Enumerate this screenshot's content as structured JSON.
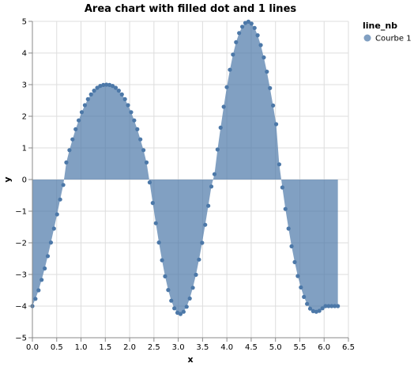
{
  "chart_data": {
    "type": "area",
    "title": "Area chart with filled dot and 1 lines",
    "xlabel": "x",
    "ylabel": "y",
    "xlim": [
      0,
      6.5
    ],
    "ylim": [
      -5,
      5
    ],
    "x_ticks": [
      0.0,
      0.5,
      1.0,
      1.5,
      2.0,
      2.5,
      3.0,
      3.5,
      4.0,
      4.5,
      5.0,
      5.5,
      6.0,
      6.5
    ],
    "x_tick_labels": [
      "0.0",
      "0.5",
      "1.0",
      "1.5",
      "2.0",
      "2.5",
      "3.0",
      "3.5",
      "4.0",
      "4.5",
      "5.0",
      "5.5",
      "6.0",
      "6.5"
    ],
    "y_ticks": [
      5,
      4,
      3,
      2,
      1,
      0,
      -1,
      -2,
      -3,
      -4,
      -5
    ],
    "y_tick_labels": [
      "5",
      "4",
      "3",
      "2",
      "1",
      "0",
      "−1",
      "−2",
      "−3",
      "−4",
      "−5"
    ],
    "grid": true,
    "legend": {
      "title": "line_nb",
      "position": "top-right",
      "items": [
        {
          "label": "Courbe 1",
          "color": "#4c78a8"
        }
      ]
    },
    "colors": {
      "series": "#4c78a8",
      "area_opacity": 0.7,
      "grid": "#dddddd",
      "axis": "#888888"
    },
    "series": [
      {
        "name": "Courbe 1",
        "x": [
          0.0,
          0.063,
          0.127,
          0.19,
          0.254,
          0.317,
          0.381,
          0.444,
          0.508,
          0.571,
          0.635,
          0.698,
          0.762,
          0.825,
          0.889,
          0.952,
          1.015,
          1.079,
          1.142,
          1.206,
          1.269,
          1.333,
          1.396,
          1.46,
          1.523,
          1.587,
          1.65,
          1.714,
          1.777,
          1.841,
          1.904,
          1.967,
          2.031,
          2.094,
          2.158,
          2.221,
          2.285,
          2.348,
          2.412,
          2.475,
          2.539,
          2.602,
          2.666,
          2.729,
          2.793,
          2.856,
          2.919,
          2.983,
          3.046,
          3.11,
          3.173,
          3.237,
          3.3,
          3.364,
          3.427,
          3.491,
          3.554,
          3.618,
          3.681,
          3.745,
          3.808,
          3.871,
          3.935,
          3.998,
          4.062,
          4.125,
          4.189,
          4.252,
          4.316,
          4.379,
          4.443,
          4.506,
          4.57,
          4.633,
          4.697,
          4.76,
          4.823,
          4.887,
          4.95,
          5.014,
          5.077,
          5.141,
          5.204,
          5.268,
          5.331,
          5.395,
          5.458,
          5.522,
          5.585,
          5.649,
          5.712,
          5.775,
          5.839,
          5.902,
          5.966,
          6.029,
          6.093,
          6.156,
          6.22,
          6.283
        ],
        "y": [
          -4.0,
          -3.77,
          -3.5,
          -3.17,
          -2.81,
          -2.42,
          -1.99,
          -1.55,
          -1.1,
          -0.63,
          -0.17,
          0.54,
          0.93,
          1.27,
          1.59,
          1.87,
          2.13,
          2.35,
          2.54,
          2.69,
          2.81,
          2.9,
          2.96,
          2.99,
          3.0,
          2.99,
          2.96,
          2.9,
          2.81,
          2.69,
          2.54,
          2.35,
          2.13,
          1.87,
          1.59,
          1.27,
          0.93,
          0.54,
          -0.09,
          -0.74,
          -1.38,
          -1.99,
          -2.55,
          -3.06,
          -3.49,
          -3.83,
          -4.07,
          -4.21,
          -4.25,
          -4.18,
          -4.02,
          -3.76,
          -3.42,
          -3.01,
          -2.53,
          -2.0,
          -1.43,
          -0.83,
          -0.22,
          0.17,
          0.95,
          1.64,
          2.3,
          2.92,
          3.47,
          3.95,
          4.34,
          4.63,
          4.83,
          4.95,
          4.99,
          4.93,
          4.79,
          4.56,
          4.25,
          3.86,
          3.41,
          2.89,
          2.34,
          1.75,
          0.48,
          -0.25,
          -0.93,
          -1.55,
          -2.11,
          -2.61,
          -3.05,
          -3.41,
          -3.71,
          -3.93,
          -4.08,
          -4.16,
          -4.18,
          -4.15,
          -4.07,
          -4.0,
          -4.0,
          -4.0,
          -4.0,
          -4.0
        ]
      }
    ]
  }
}
